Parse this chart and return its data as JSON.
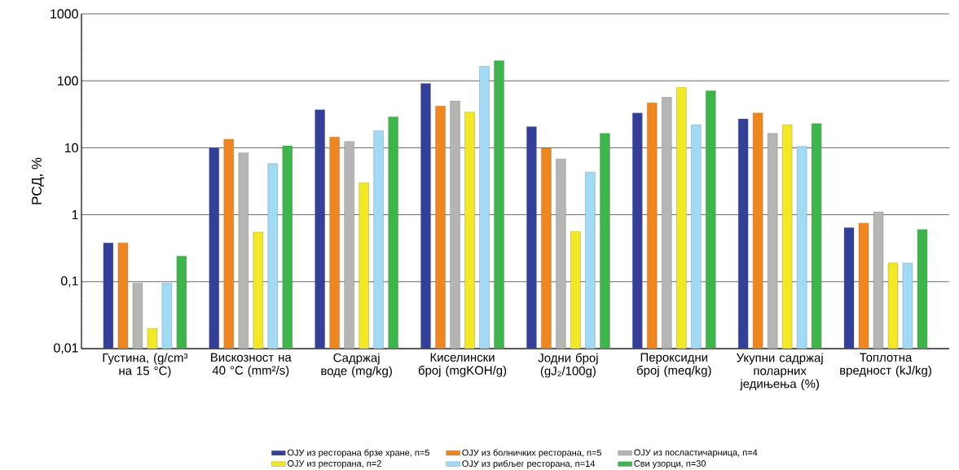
{
  "chart_data": {
    "type": "bar",
    "log": "y",
    "ylabel": "РСД, %",
    "categories": [
      "Густина, (g/cm³ на 15 °C)",
      "Вискозност на 40 °C (mm²/s)",
      "Садржај воде (mg/kg)",
      "Киселински број (mgKOH/g)",
      "Јодни број (gJ₂/100g)",
      "Пероксидни број (meq/kg)",
      "Укупни садржај поларних једињења (%)",
      "Топлотна вредност (kJ/kg)"
    ],
    "series": [
      {
        "name": "ОЈУ из ресторана брзе хране, n=5",
        "color": "#333f99",
        "values": [
          0.38,
          10,
          37,
          91,
          20.7,
          33,
          27,
          0.64
        ]
      },
      {
        "name": "ОЈУ из болничких ресторана, n=5",
        "color": "#f0861f",
        "values": [
          0.38,
          13.4,
          14.5,
          42,
          9.8,
          47,
          33,
          0.75
        ]
      },
      {
        "name": "ОЈУ из посластичарница, n=4",
        "color": "#b5b5b3",
        "values": [
          0.095,
          8.4,
          12.4,
          50,
          6.8,
          57,
          16.4,
          1.1
        ]
      },
      {
        "name": "ОЈУ из ресторана, n=2",
        "color": "#f2e824",
        "values": [
          0.02,
          0.55,
          3.0,
          34,
          0.56,
          80,
          22,
          0.19
        ]
      },
      {
        "name": "ОЈУ из рибљег ресторана, n=14",
        "color": "#a1daf5",
        "values": [
          0.095,
          5.8,
          18,
          164,
          4.3,
          22,
          10.5,
          0.19
        ]
      },
      {
        "name": "Сви узорци, n=30",
        "color": "#3db54a",
        "values": [
          0.24,
          10.7,
          29,
          200,
          16.4,
          71,
          23,
          0.6
        ]
      }
    ],
    "ylim": [
      0.01,
      1000
    ],
    "yticks": [
      {
        "value": 0.01,
        "label": "0,01"
      },
      {
        "value": 0.1,
        "label": "0,1"
      },
      1,
      10,
      100,
      1000
    ],
    "grid": "y",
    "legend": "bottom"
  }
}
